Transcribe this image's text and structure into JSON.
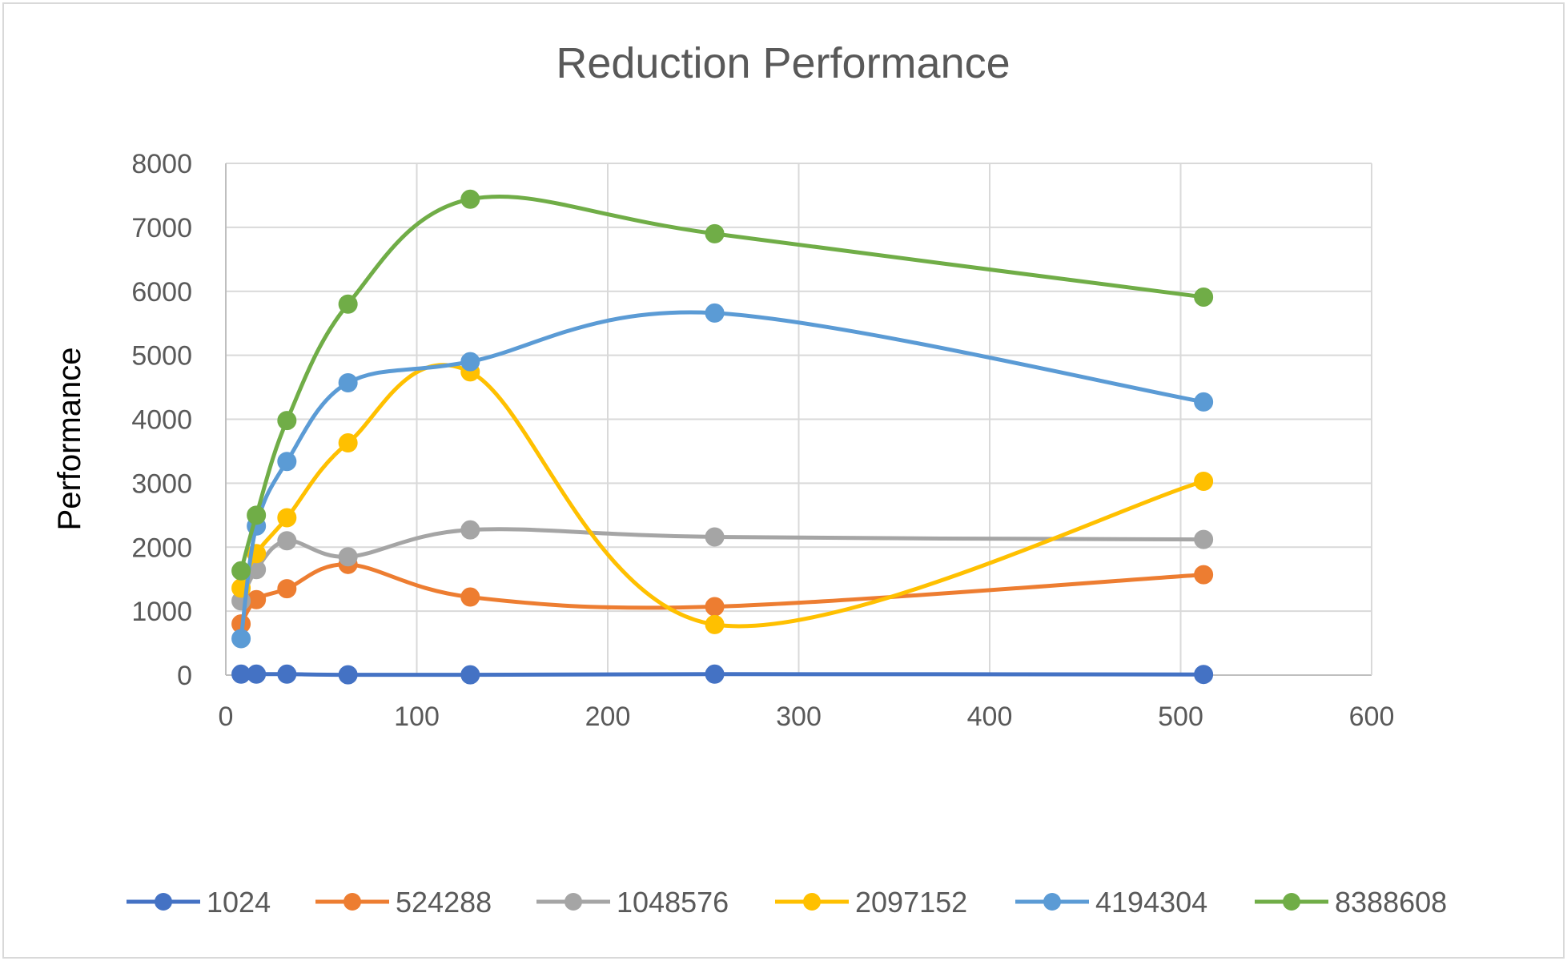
{
  "chart_data": {
    "type": "line",
    "title": "Reduction Performance",
    "xlabel": "",
    "ylabel": "Performance",
    "xlim": [
      0,
      600
    ],
    "ylim": [
      0,
      8000
    ],
    "x_ticks": [
      0,
      100,
      200,
      300,
      400,
      500,
      600
    ],
    "y_ticks": [
      0,
      1000,
      2000,
      3000,
      4000,
      5000,
      6000,
      7000,
      8000
    ],
    "grid": true,
    "legend_position": "bottom",
    "smooth": true,
    "x": [
      8,
      16,
      32,
      64,
      128,
      256,
      512
    ],
    "series": [
      {
        "name": "1024",
        "color": "#4472c4",
        "values": [
          15,
          15,
          15,
          5,
          5,
          15,
          10
        ]
      },
      {
        "name": "524288",
        "color": "#ed7d31",
        "values": [
          800,
          1180,
          1350,
          1730,
          1220,
          1070,
          1570
        ]
      },
      {
        "name": "1048576",
        "color": "#a5a5a5",
        "values": [
          1160,
          1650,
          2100,
          1850,
          2270,
          2160,
          2120
        ]
      },
      {
        "name": "2097152",
        "color": "#ffc000",
        "values": [
          1360,
          1900,
          2460,
          3630,
          4740,
          790,
          3030
        ]
      },
      {
        "name": "4194304",
        "color": "#5b9bd5",
        "values": [
          570,
          2330,
          3340,
          4570,
          4900,
          5660,
          4270
        ]
      },
      {
        "name": "8388608",
        "color": "#70ad47",
        "values": [
          1630,
          2500,
          3980,
          5800,
          7440,
          6900,
          5910
        ]
      }
    ]
  }
}
